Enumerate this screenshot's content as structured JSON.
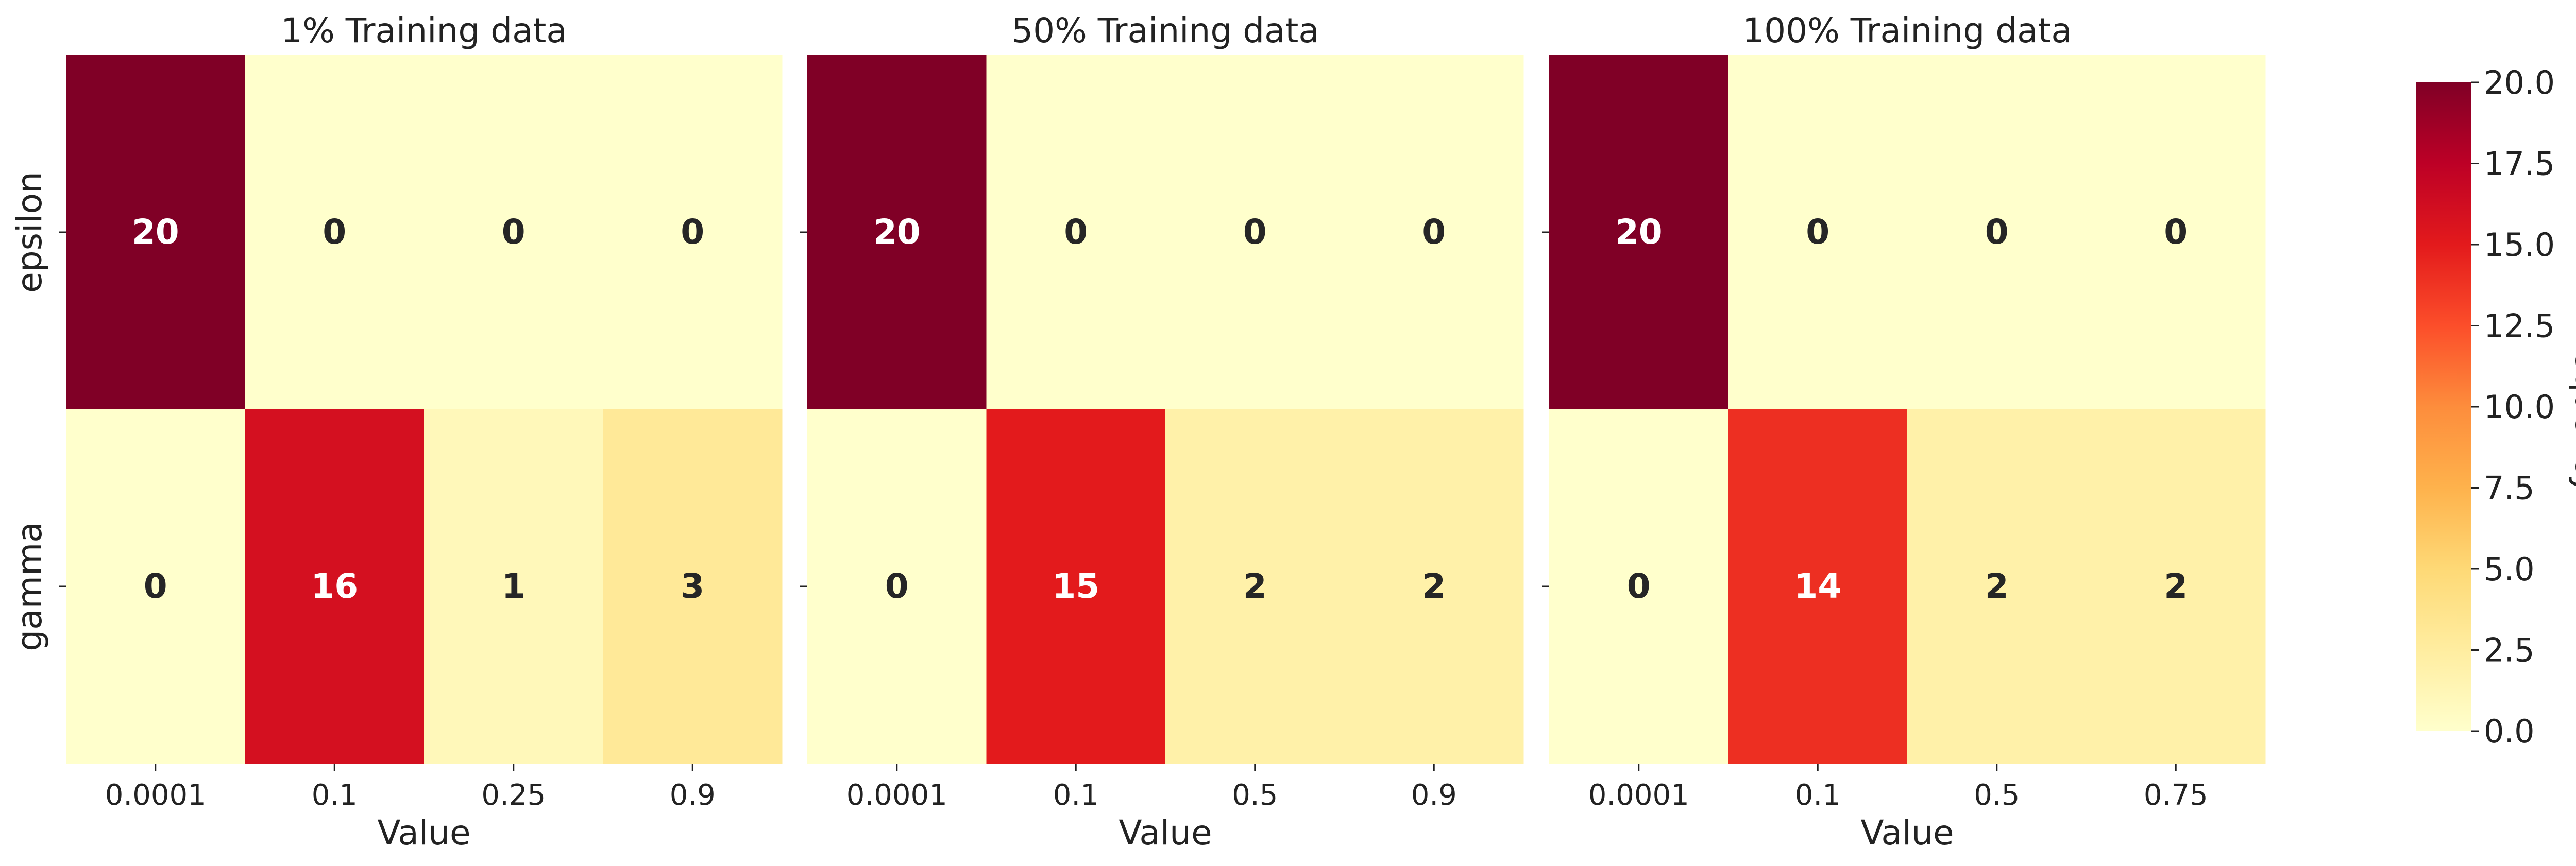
{
  "chart_data": [
    {
      "type": "heatmap",
      "title": "1% Training data",
      "xlabel": "Value",
      "ylabel": "",
      "rows": [
        "epsilon",
        "gamma"
      ],
      "columns": [
        "0.0001",
        "0.1",
        "0.25",
        "0.9"
      ],
      "values": [
        [
          20,
          0,
          0,
          0
        ],
        [
          0,
          16,
          1,
          3
        ]
      ]
    },
    {
      "type": "heatmap",
      "title": "50% Training data",
      "xlabel": "Value",
      "ylabel": "",
      "rows": [
        "epsilon",
        "gamma"
      ],
      "columns": [
        "0.0001",
        "0.1",
        "0.5",
        "0.9"
      ],
      "values": [
        [
          20,
          0,
          0,
          0
        ],
        [
          0,
          15,
          2,
          2
        ]
      ]
    },
    {
      "type": "heatmap",
      "title": "100% Training data",
      "xlabel": "Value",
      "ylabel": "",
      "rows": [
        "epsilon",
        "gamma"
      ],
      "columns": [
        "0.0001",
        "0.1",
        "0.5",
        "0.75"
      ],
      "values": [
        [
          20,
          0,
          0,
          0
        ],
        [
          0,
          14,
          2,
          2
        ]
      ]
    }
  ],
  "colorbar": {
    "label": "Frequency",
    "range": [
      0,
      20
    ],
    "ticks": [
      "0.0",
      "2.5",
      "5.0",
      "7.5",
      "10.0",
      "12.5",
      "15.0",
      "17.5",
      "20.0"
    ],
    "colormap": "YlOrRd",
    "colors": [
      "#ffffcc",
      "#ffeda0",
      "#fed976",
      "#feb24c",
      "#fd8d3c",
      "#fc4e2a",
      "#e31a1c",
      "#bd0026",
      "#800026"
    ]
  }
}
